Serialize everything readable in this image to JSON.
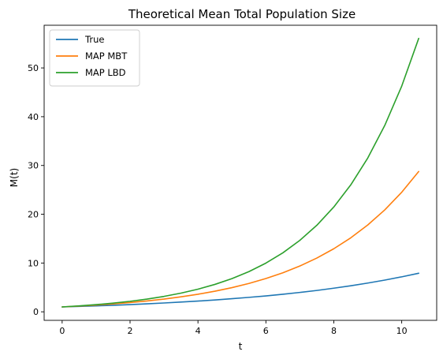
{
  "chart_data": {
    "type": "line",
    "title": "Theoretical Mean Total Population Size",
    "xlabel": "t",
    "ylabel": "M(t)",
    "xlim": [
      -0.53,
      11.03
    ],
    "ylim": [
      -1.75,
      58.75
    ],
    "xticks": [
      0,
      2,
      4,
      6,
      8,
      10
    ],
    "yticks": [
      0,
      10,
      20,
      30,
      40,
      50
    ],
    "grid": false,
    "legend": "top-left",
    "x": [
      0,
      0.5,
      1,
      1.5,
      2,
      2.5,
      3,
      3.5,
      4,
      4.5,
      5,
      5.5,
      6,
      6.5,
      7,
      7.5,
      8,
      8.5,
      9,
      9.5,
      10,
      10.5
    ],
    "series": [
      {
        "name": "True",
        "color": "#1f77b4",
        "values": [
          1.0,
          1.1,
          1.22,
          1.34,
          1.48,
          1.64,
          1.81,
          2.0,
          2.2,
          2.43,
          2.68,
          2.96,
          3.26,
          3.6,
          3.97,
          4.38,
          4.84,
          5.34,
          5.89,
          6.5,
          7.17,
          7.91
        ]
      },
      {
        "name": "MAP MBT",
        "color": "#ff7f0e",
        "values": [
          1.0,
          1.17,
          1.38,
          1.62,
          1.9,
          2.23,
          2.61,
          3.07,
          3.6,
          4.22,
          4.95,
          5.81,
          6.82,
          8.0,
          9.39,
          11.02,
          12.93,
          15.17,
          17.8,
          20.89,
          24.51,
          28.76
        ]
      },
      {
        "name": "MAP LBD",
        "color": "#2ca02c",
        "values": [
          1.0,
          1.21,
          1.47,
          1.78,
          2.15,
          2.61,
          3.16,
          3.83,
          4.64,
          5.62,
          6.8,
          8.24,
          9.98,
          12.09,
          14.65,
          17.74,
          21.49,
          26.03,
          31.53,
          38.2,
          46.27,
          56.05
        ]
      }
    ]
  }
}
